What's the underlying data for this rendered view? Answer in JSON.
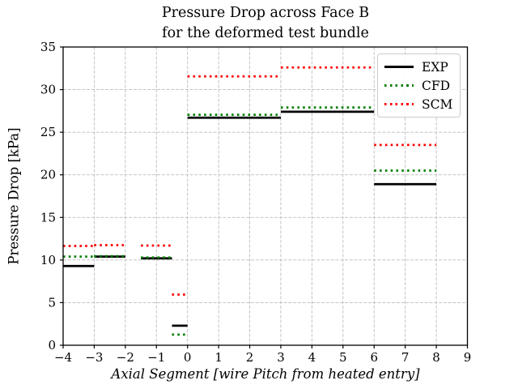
{
  "chart_data": {
    "type": "line",
    "subtype": "horizontal-segments-step",
    "title": "Pressure Drop across Face B",
    "subtitle": "for the deformed test bundle",
    "xlabel": "Axial Segment [wire Pitch from heated entry]",
    "ylabel": "Pressure Drop [kPa]",
    "xlim": [
      -4,
      9
    ],
    "ylim": [
      0,
      35
    ],
    "xticks": [
      -4,
      -3,
      -2,
      -1,
      0,
      1,
      2,
      3,
      4,
      5,
      6,
      7,
      8,
      9
    ],
    "yticks": [
      0,
      5,
      10,
      15,
      20,
      25,
      30,
      35
    ],
    "grid": true,
    "grid_style": "dashed",
    "grid_color": "#bdbdbd",
    "legend_position": "upper right",
    "series": [
      {
        "name": "EXP",
        "color": "#000000",
        "style": "solid",
        "segments": [
          {
            "x": [
              -4,
              -3
            ],
            "y": 9.3
          },
          {
            "x": [
              -3,
              -2
            ],
            "y": 10.4
          },
          {
            "x": [
              -1.5,
              -0.5
            ],
            "y": 10.2
          },
          {
            "x": [
              -0.5,
              0
            ],
            "y": 2.3
          },
          {
            "x": [
              0,
              3
            ],
            "y": 26.7
          },
          {
            "x": [
              3,
              6
            ],
            "y": 27.4
          },
          {
            "x": [
              6,
              8
            ],
            "y": 18.9
          }
        ]
      },
      {
        "name": "CFD",
        "color": "#008000",
        "style": "dotted",
        "segments": [
          {
            "x": [
              -4,
              -3
            ],
            "y": 10.4
          },
          {
            "x": [
              -3,
              -2
            ],
            "y": 10.45
          },
          {
            "x": [
              -1.5,
              -0.5
            ],
            "y": 10.3
          },
          {
            "x": [
              -0.5,
              0
            ],
            "y": 1.25
          },
          {
            "x": [
              0,
              3
            ],
            "y": 27.05
          },
          {
            "x": [
              3,
              6
            ],
            "y": 27.9
          },
          {
            "x": [
              6,
              8
            ],
            "y": 20.5
          }
        ]
      },
      {
        "name": "SCM",
        "color": "#ff0000",
        "style": "dotted",
        "segments": [
          {
            "x": [
              -4,
              -3
            ],
            "y": 11.65
          },
          {
            "x": [
              -3,
              -2
            ],
            "y": 11.75
          },
          {
            "x": [
              -1.5,
              -0.5
            ],
            "y": 11.7
          },
          {
            "x": [
              -0.5,
              0
            ],
            "y": 5.95
          },
          {
            "x": [
              0,
              3
            ],
            "y": 31.55
          },
          {
            "x": [
              3,
              6
            ],
            "y": 32.6
          },
          {
            "x": [
              6,
              8
            ],
            "y": 23.5
          }
        ]
      }
    ]
  }
}
